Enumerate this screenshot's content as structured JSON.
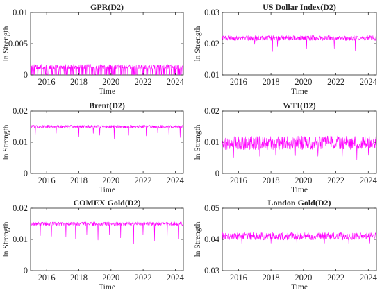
{
  "figure": {
    "background": "#ffffff",
    "line_color": "#ff00ff",
    "axis_color": "#262626"
  },
  "chart_data": [
    {
      "type": "line",
      "title": "GPR(D2)",
      "xlabel": "Time",
      "ylabel": "ln Strength",
      "xlim": [
        2015.0,
        2024.5
      ],
      "ylim": [
        0,
        0.01
      ],
      "xticks": [
        2016,
        2018,
        2020,
        2022,
        2024
      ],
      "xtick_labels": [
        "2016",
        "2018",
        "2020",
        "2022",
        "2024"
      ],
      "yticks": [
        0,
        0.005,
        0.01
      ],
      "ytick_labels": [
        "0",
        "0.005",
        "0.01"
      ],
      "series": [
        {
          "color": "#ff00ff",
          "baseline": 0.0013,
          "noise": 0.0004,
          "upper": 0.0019,
          "dips": [],
          "lower": 0
        }
      ]
    },
    {
      "type": "line",
      "title": "US Dollar Index(D2)",
      "xlabel": "Time",
      "ylabel": "ln Strength",
      "xlim": [
        2015.0,
        2024.5
      ],
      "ylim": [
        0.01,
        0.03
      ],
      "xticks": [
        2016,
        2018,
        2020,
        2022,
        2024
      ],
      "xtick_labels": [
        "2016",
        "2018",
        "2020",
        "2022",
        "2024"
      ],
      "yticks": [
        0.01,
        0.02,
        0.03
      ],
      "ytick_labels": [
        "0.01",
        "0.02",
        "0.03"
      ],
      "series": [
        {
          "color": "#ff00ff",
          "baseline": 0.0218,
          "noise": 0.0008,
          "upper": 0.0232,
          "dips": [
            {
              "x": 2018.1,
              "y": 0.0175
            },
            {
              "x": 2018.4,
              "y": 0.019
            },
            {
              "x": 2020.2,
              "y": 0.0185
            },
            {
              "x": 2021.9,
              "y": 0.0185
            },
            {
              "x": 2023.2,
              "y": 0.0178
            },
            {
              "x": 2017.0,
              "y": 0.0198
            }
          ]
        }
      ]
    },
    {
      "type": "line",
      "title": "Brent(D2)",
      "xlabel": "Time",
      "ylabel": "ln Strength",
      "xlim": [
        2015.0,
        2024.5
      ],
      "ylim": [
        0,
        0.02
      ],
      "xticks": [
        2016,
        2018,
        2020,
        2022,
        2024
      ],
      "xtick_labels": [
        "2016",
        "2018",
        "2020",
        "2022",
        "2024"
      ],
      "yticks": [
        0,
        0.01,
        0.02
      ],
      "ytick_labels": [
        "0",
        "0.01",
        "0.02"
      ],
      "series": [
        {
          "color": "#ff00ff",
          "baseline": 0.015,
          "noise": 0.0005,
          "upper": 0.016,
          "dips": [
            {
              "x": 2015.3,
              "y": 0.0125
            },
            {
              "x": 2016.6,
              "y": 0.0128
            },
            {
              "x": 2017.4,
              "y": 0.0132
            },
            {
              "x": 2018.0,
              "y": 0.0118
            },
            {
              "x": 2018.9,
              "y": 0.0128
            },
            {
              "x": 2019.3,
              "y": 0.0122
            },
            {
              "x": 2020.2,
              "y": 0.011
            },
            {
              "x": 2021.1,
              "y": 0.0122
            },
            {
              "x": 2022.2,
              "y": 0.012
            },
            {
              "x": 2022.9,
              "y": 0.013
            },
            {
              "x": 2023.6,
              "y": 0.0125
            },
            {
              "x": 2024.3,
              "y": 0.0115
            }
          ]
        }
      ]
    },
    {
      "type": "line",
      "title": "WTI(D2)",
      "xlabel": "Time",
      "ylabel": "ln Strength",
      "xlim": [
        2015.0,
        2024.5
      ],
      "ylim": [
        0,
        0.02
      ],
      "xticks": [
        2016,
        2018,
        2020,
        2022,
        2024
      ],
      "xtick_labels": [
        "2016",
        "2018",
        "2020",
        "2022",
        "2024"
      ],
      "yticks": [
        0,
        0.01,
        0.02
      ],
      "ytick_labels": [
        "0",
        "0.01",
        "0.02"
      ],
      "series": [
        {
          "color": "#ff00ff",
          "baseline": 0.0098,
          "noise": 0.0022,
          "upper": 0.0135,
          "dips": [
            {
              "x": 2015.7,
              "y": 0.0052
            },
            {
              "x": 2017.3,
              "y": 0.0055
            },
            {
              "x": 2018.3,
              "y": 0.0058
            },
            {
              "x": 2019.5,
              "y": 0.0057
            },
            {
              "x": 2020.9,
              "y": 0.0055
            },
            {
              "x": 2022.4,
              "y": 0.0055
            },
            {
              "x": 2023.3,
              "y": 0.0045
            },
            {
              "x": 2024.0,
              "y": 0.0058
            }
          ]
        }
      ]
    },
    {
      "type": "line",
      "title": "COMEX Gold(D2)",
      "xlabel": "Time",
      "ylabel": "ln Strength",
      "xlim": [
        2015.0,
        2024.5
      ],
      "ylim": [
        0,
        0.02
      ],
      "xticks": [
        2016,
        2018,
        2020,
        2022,
        2024
      ],
      "xtick_labels": [
        "2016",
        "2018",
        "2020",
        "2022",
        "2024"
      ],
      "yticks": [
        0,
        0.01,
        0.02
      ],
      "ytick_labels": [
        "0",
        "0.01",
        "0.02"
      ],
      "series": [
        {
          "color": "#ff00ff",
          "baseline": 0.015,
          "noise": 0.0006,
          "upper": 0.0162,
          "dips": [
            {
              "x": 2015.6,
              "y": 0.0112
            },
            {
              "x": 2016.3,
              "y": 0.011
            },
            {
              "x": 2017.2,
              "y": 0.0108
            },
            {
              "x": 2017.8,
              "y": 0.0102
            },
            {
              "x": 2018.5,
              "y": 0.0115
            },
            {
              "x": 2019.2,
              "y": 0.0098
            },
            {
              "x": 2019.9,
              "y": 0.0115
            },
            {
              "x": 2020.6,
              "y": 0.0105
            },
            {
              "x": 2021.4,
              "y": 0.0085
            },
            {
              "x": 2022.0,
              "y": 0.0115
            },
            {
              "x": 2022.7,
              "y": 0.0095
            },
            {
              "x": 2023.5,
              "y": 0.0108
            },
            {
              "x": 2024.2,
              "y": 0.0102
            }
          ]
        }
      ]
    },
    {
      "type": "line",
      "title": "London Gold(D2)",
      "xlabel": "Time",
      "ylabel": "ln Strength",
      "xlim": [
        2015.0,
        2024.5
      ],
      "ylim": [
        0.03,
        0.05
      ],
      "xticks": [
        2016,
        2018,
        2020,
        2022,
        2024
      ],
      "xtick_labels": [
        "2016",
        "2018",
        "2020",
        "2022",
        "2024"
      ],
      "yticks": [
        0.03,
        0.04,
        0.05
      ],
      "ytick_labels": [
        "0.03",
        "0.04",
        "0.05"
      ],
      "series": [
        {
          "color": "#ff00ff",
          "baseline": 0.041,
          "noise": 0.0012,
          "upper": 0.0435,
          "dips": [
            {
              "x": 2016.2,
              "y": 0.0385
            },
            {
              "x": 2018.0,
              "y": 0.0388
            },
            {
              "x": 2019.6,
              "y": 0.0385
            },
            {
              "x": 2021.3,
              "y": 0.0388
            },
            {
              "x": 2022.8,
              "y": 0.0385
            },
            {
              "x": 2024.1,
              "y": 0.0388
            }
          ]
        }
      ]
    }
  ]
}
